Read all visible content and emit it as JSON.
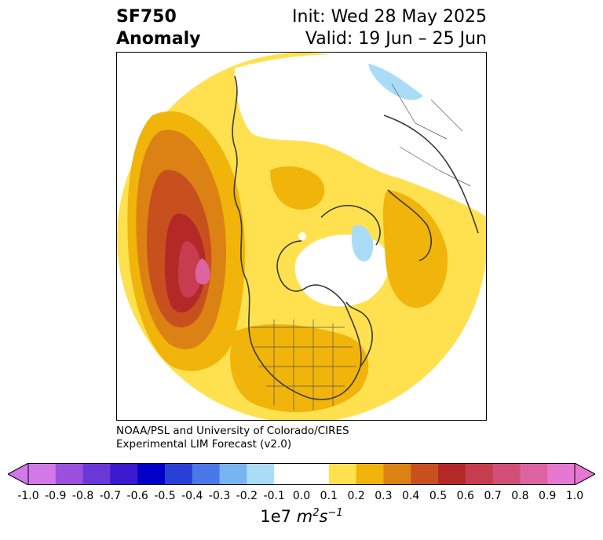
{
  "title": {
    "line1": "SF750",
    "line2": "Anomaly",
    "init": "Init: Wed 28 May 2025",
    "valid": "Valid: 19 Jun – 25 Jun"
  },
  "credit": {
    "line1": "NOAA/PSL and University of Colorado/CIRES",
    "line2": "Experimental LIM Forecast (v2.0)"
  },
  "colorbar": {
    "units_prefix": "1e7",
    "units_m": "m",
    "units_sup1": "2",
    "units_s": "s",
    "units_sup2": "−1",
    "ticks": [
      "-1.0",
      "-0.9",
      "-0.8",
      "-0.7",
      "-0.6",
      "-0.5",
      "-0.4",
      "-0.3",
      "-0.2",
      "-0.1",
      "0.0",
      "0.1",
      "0.2",
      "0.3",
      "0.4",
      "0.5",
      "0.6",
      "0.7",
      "0.8",
      "0.9",
      "1.0"
    ],
    "colors": [
      "#d278e8",
      "#9b50e0",
      "#6b38d8",
      "#3a19d0",
      "#0000c8",
      "#2840d8",
      "#4a78e8",
      "#78b4f0",
      "#aadcf8",
      "#ffffff",
      "#ffffff",
      "#ffe150",
      "#f0b40a",
      "#dc8214",
      "#c8501e",
      "#b42828",
      "#c83c50",
      "#d25078",
      "#dc64a0",
      "#e678d2"
    ],
    "under_color": "#d278e8",
    "over_color": "#e678d2"
  }
}
